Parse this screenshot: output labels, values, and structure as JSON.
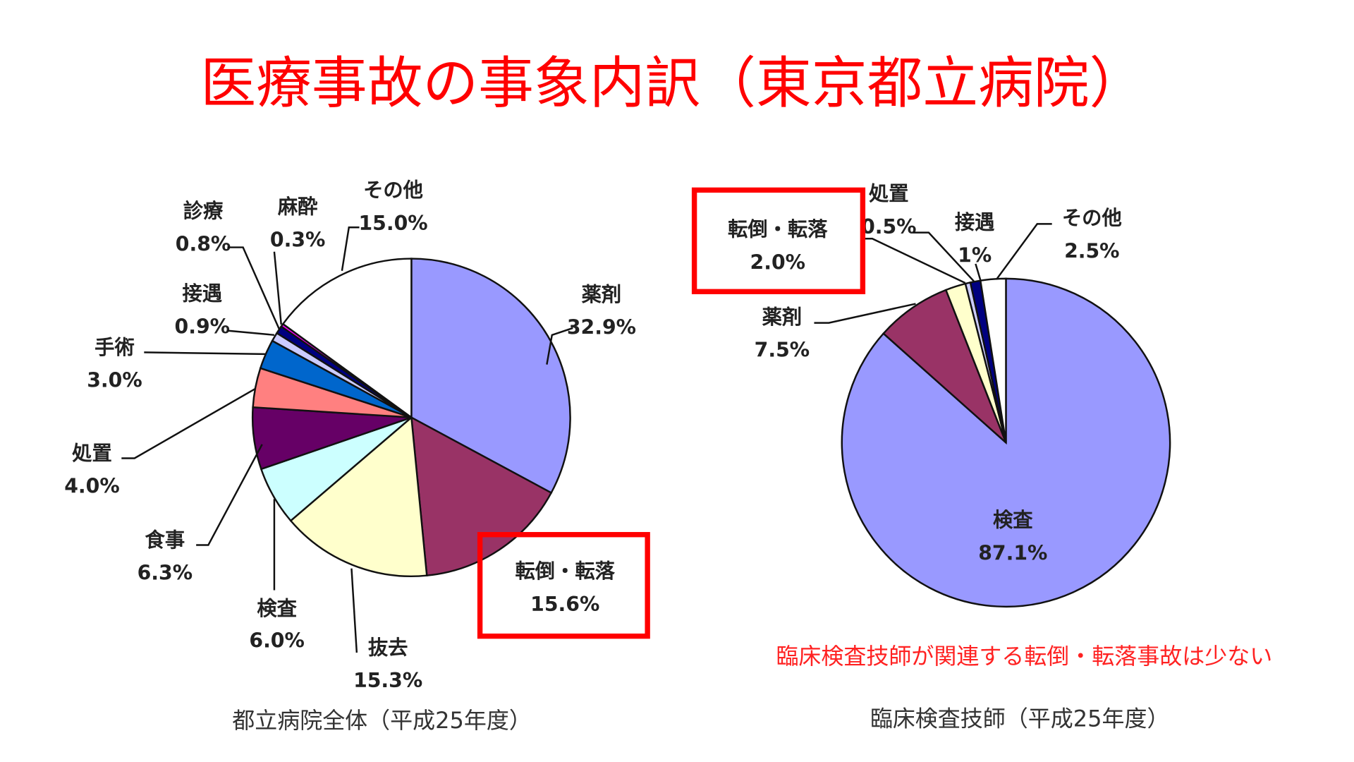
{
  "title": "医療事故の事象内訳（東京都立病院）",
  "note": "臨床検査技師が関連する転倒・転落事故は少ない",
  "colors": {
    "accent": "#ff0000"
  },
  "chart_data": [
    {
      "type": "pie",
      "title": "都立病院全体（平成25年度）",
      "start": "top",
      "direction": "clockwise",
      "slices": [
        {
          "label": "薬剤",
          "value": 32.9,
          "text": "32.9%",
          "color": "#9999ff"
        },
        {
          "label": "転倒・転落",
          "value": 15.6,
          "text": "15.6%",
          "color": "#993366",
          "highlighted": true
        },
        {
          "label": "抜去",
          "value": 15.3,
          "text": "15.3%",
          "color": "#ffffcc"
        },
        {
          "label": "検査",
          "value": 6.0,
          "text": "6.0%",
          "color": "#ccffff"
        },
        {
          "label": "食事",
          "value": 6.3,
          "text": "6.3%",
          "color": "#660066"
        },
        {
          "label": "処置",
          "value": 4.0,
          "text": "4.0%",
          "color": "#ff8080"
        },
        {
          "label": "手術",
          "value": 3.0,
          "text": "3.0%",
          "color": "#0066cc"
        },
        {
          "label": "接遇",
          "value": 0.9,
          "text": "0.9%",
          "color": "#ccccff"
        },
        {
          "label": "診療",
          "value": 0.8,
          "text": "0.8%",
          "color": "#000080"
        },
        {
          "label": "麻酔",
          "value": 0.3,
          "text": "0.3%",
          "color": "#ff00ff"
        },
        {
          "label": "その他",
          "value": 15.0,
          "text": "15.0%",
          "color": "#ffffff"
        }
      ]
    },
    {
      "type": "pie",
      "title": "臨床検査技師（平成25年度）",
      "start": "top",
      "direction": "clockwise",
      "slices": [
        {
          "label": "検査",
          "value": 87.1,
          "text": "87.1%",
          "color": "#9999ff"
        },
        {
          "label": "薬剤",
          "value": 7.5,
          "text": "7.5%",
          "color": "#993366"
        },
        {
          "label": "転倒・転落",
          "value": 2.0,
          "text": "2.0%",
          "color": "#ffffcc",
          "highlighted": true
        },
        {
          "label": "処置",
          "value": 0.5,
          "text": "0.5%",
          "color": "#ccccff"
        },
        {
          "label": "接遇",
          "value": 1,
          "text": "1%",
          "color": "#000080"
        },
        {
          "label": "その他",
          "value": 2.5,
          "text": "2.5%",
          "color": "#ffffff"
        }
      ]
    }
  ]
}
